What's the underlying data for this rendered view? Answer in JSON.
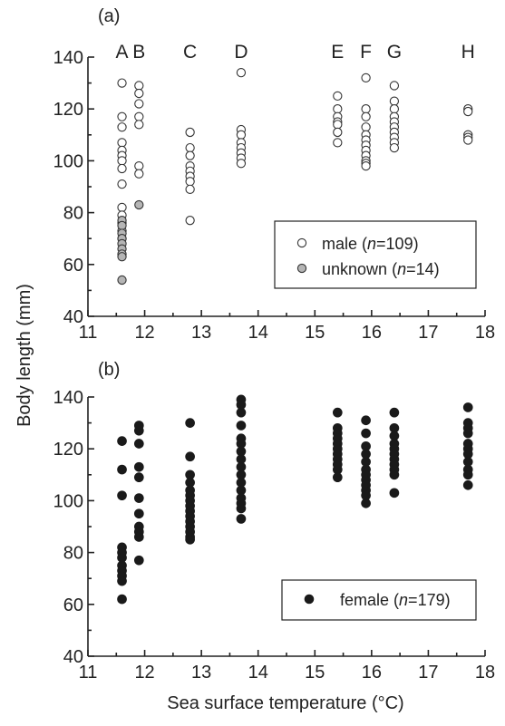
{
  "y_axis_title": "Body length (mm)",
  "x_axis_title": "Sea surface temperature (°C)",
  "colors": {
    "male": "#ffffff",
    "unknown": "#b5b5b5",
    "female": "#1a1a1a",
    "stroke": "#333333"
  },
  "chart_data": [
    {
      "type": "scatter",
      "panel_label": "(a)",
      "xlim": [
        11,
        18
      ],
      "ylim": [
        40,
        140
      ],
      "x_ticks": [
        11,
        12,
        13,
        14,
        15,
        16,
        17,
        18
      ],
      "y_ticks": [
        40,
        60,
        80,
        100,
        120,
        140
      ],
      "x_tick_labels": [
        "11",
        "12",
        "13",
        "14",
        "15",
        "16",
        "17",
        "18"
      ],
      "y_tick_labels": [
        "40",
        "60",
        "80",
        "100",
        "120",
        "140"
      ],
      "group_labels": [
        {
          "label": "A",
          "x": 11.6
        },
        {
          "label": "B",
          "x": 11.9
        },
        {
          "label": "C",
          "x": 12.8
        },
        {
          "label": "D",
          "x": 13.7
        },
        {
          "label": "E",
          "x": 15.4
        },
        {
          "label": "F",
          "x": 15.9
        },
        {
          "label": "G",
          "x": 16.4
        },
        {
          "label": "H",
          "x": 17.7
        }
      ],
      "legend_position": "lower-right",
      "series": [
        {
          "name": "male",
          "n": "109",
          "marker": "open-circle",
          "points": [
            [
              11.6,
              130
            ],
            [
              11.6,
              117
            ],
            [
              11.6,
              113
            ],
            [
              11.6,
              107
            ],
            [
              11.6,
              104
            ],
            [
              11.6,
              102
            ],
            [
              11.6,
              100
            ],
            [
              11.6,
              97
            ],
            [
              11.6,
              91
            ],
            [
              11.6,
              82
            ],
            [
              11.6,
              79
            ],
            [
              11.6,
              76
            ],
            [
              11.6,
              73
            ],
            [
              11.6,
              70
            ],
            [
              11.9,
              129
            ],
            [
              11.9,
              126
            ],
            [
              11.9,
              122
            ],
            [
              11.9,
              117
            ],
            [
              11.9,
              114
            ],
            [
              11.9,
              98
            ],
            [
              11.9,
              95
            ],
            [
              12.8,
              111
            ],
            [
              12.8,
              105
            ],
            [
              12.8,
              102
            ],
            [
              12.8,
              98
            ],
            [
              12.8,
              96
            ],
            [
              12.8,
              94
            ],
            [
              12.8,
              92
            ],
            [
              12.8,
              89
            ],
            [
              12.8,
              77
            ],
            [
              13.7,
              134
            ],
            [
              13.7,
              112
            ],
            [
              13.7,
              110
            ],
            [
              13.7,
              107
            ],
            [
              13.7,
              105
            ],
            [
              13.7,
              103
            ],
            [
              13.7,
              101
            ],
            [
              13.7,
              99
            ],
            [
              15.4,
              125
            ],
            [
              15.4,
              120
            ],
            [
              15.4,
              117
            ],
            [
              15.4,
              115
            ],
            [
              15.4,
              114
            ],
            [
              15.4,
              111
            ],
            [
              15.4,
              107
            ],
            [
              15.9,
              132
            ],
            [
              15.9,
              120
            ],
            [
              15.9,
              117
            ],
            [
              15.9,
              113
            ],
            [
              15.9,
              110
            ],
            [
              15.9,
              108
            ],
            [
              15.9,
              106
            ],
            [
              15.9,
              104
            ],
            [
              15.9,
              102
            ],
            [
              15.9,
              100
            ],
            [
              15.9,
              99
            ],
            [
              15.9,
              98
            ],
            [
              16.4,
              129
            ],
            [
              16.4,
              123
            ],
            [
              16.4,
              120
            ],
            [
              16.4,
              117
            ],
            [
              16.4,
              115
            ],
            [
              16.4,
              113
            ],
            [
              16.4,
              111
            ],
            [
              16.4,
              109
            ],
            [
              16.4,
              107
            ],
            [
              16.4,
              105
            ],
            [
              17.7,
              120
            ],
            [
              17.7,
              119
            ],
            [
              17.7,
              110
            ],
            [
              17.7,
              109
            ],
            [
              17.7,
              108
            ]
          ]
        },
        {
          "name": "unknown",
          "n": "14",
          "marker": "filled-grey-circle",
          "points": [
            [
              11.6,
              77
            ],
            [
              11.6,
              75
            ],
            [
              11.6,
              72
            ],
            [
              11.6,
              70
            ],
            [
              11.6,
              68
            ],
            [
              11.6,
              66
            ],
            [
              11.6,
              64
            ],
            [
              11.6,
              63
            ],
            [
              11.6,
              54
            ],
            [
              11.9,
              83
            ]
          ]
        }
      ]
    },
    {
      "type": "scatter",
      "panel_label": "(b)",
      "xlim": [
        11,
        18
      ],
      "ylim": [
        40,
        140
      ],
      "x_ticks": [
        11,
        12,
        13,
        14,
        15,
        16,
        17,
        18
      ],
      "y_ticks": [
        40,
        60,
        80,
        100,
        120,
        140
      ],
      "x_tick_labels": [
        "11",
        "12",
        "13",
        "14",
        "15",
        "16",
        "17",
        "18"
      ],
      "y_tick_labels": [
        "40",
        "60",
        "80",
        "100",
        "120",
        "140"
      ],
      "legend_position": "lower-right",
      "series": [
        {
          "name": "female",
          "n": "179",
          "marker": "filled-black-circle",
          "points": [
            [
              11.6,
              123
            ],
            [
              11.6,
              112
            ],
            [
              11.6,
              102
            ],
            [
              11.6,
              82
            ],
            [
              11.6,
              80
            ],
            [
              11.6,
              78
            ],
            [
              11.6,
              75
            ],
            [
              11.6,
              73
            ],
            [
              11.6,
              71
            ],
            [
              11.6,
              69
            ],
            [
              11.6,
              62
            ],
            [
              11.9,
              129
            ],
            [
              11.9,
              127
            ],
            [
              11.9,
              122
            ],
            [
              11.9,
              113
            ],
            [
              11.9,
              109
            ],
            [
              11.9,
              101
            ],
            [
              11.9,
              95
            ],
            [
              11.9,
              90
            ],
            [
              11.9,
              88
            ],
            [
              11.9,
              86
            ],
            [
              11.9,
              77
            ],
            [
              12.8,
              130
            ],
            [
              12.8,
              117
            ],
            [
              12.8,
              110
            ],
            [
              12.8,
              107
            ],
            [
              12.8,
              104
            ],
            [
              12.8,
              102
            ],
            [
              12.8,
              100
            ],
            [
              12.8,
              98
            ],
            [
              12.8,
              96
            ],
            [
              12.8,
              94
            ],
            [
              12.8,
              92
            ],
            [
              12.8,
              90
            ],
            [
              12.8,
              88
            ],
            [
              12.8,
              86
            ],
            [
              12.8,
              85
            ],
            [
              13.7,
              139
            ],
            [
              13.7,
              137
            ],
            [
              13.7,
              134
            ],
            [
              13.7,
              129
            ],
            [
              13.7,
              124
            ],
            [
              13.7,
              122
            ],
            [
              13.7,
              119
            ],
            [
              13.7,
              116
            ],
            [
              13.7,
              113
            ],
            [
              13.7,
              110
            ],
            [
              13.7,
              107
            ],
            [
              13.7,
              104
            ],
            [
              13.7,
              101
            ],
            [
              13.7,
              99
            ],
            [
              13.7,
              97
            ],
            [
              13.7,
              93
            ],
            [
              15.4,
              134
            ],
            [
              15.4,
              128
            ],
            [
              15.4,
              126
            ],
            [
              15.4,
              124
            ],
            [
              15.4,
              122
            ],
            [
              15.4,
              120
            ],
            [
              15.4,
              118
            ],
            [
              15.4,
              116
            ],
            [
              15.4,
              114
            ],
            [
              15.4,
              112
            ],
            [
              15.4,
              109
            ],
            [
              15.9,
              131
            ],
            [
              15.9,
              126
            ],
            [
              15.9,
              121
            ],
            [
              15.9,
              118
            ],
            [
              15.9,
              115
            ],
            [
              15.9,
              112
            ],
            [
              15.9,
              110
            ],
            [
              15.9,
              108
            ],
            [
              15.9,
              106
            ],
            [
              15.9,
              104
            ],
            [
              15.9,
              102
            ],
            [
              15.9,
              99
            ],
            [
              16.4,
              134
            ],
            [
              16.4,
              128
            ],
            [
              16.4,
              125
            ],
            [
              16.4,
              122
            ],
            [
              16.4,
              120
            ],
            [
              16.4,
              118
            ],
            [
              16.4,
              116
            ],
            [
              16.4,
              114
            ],
            [
              16.4,
              112
            ],
            [
              16.4,
              110
            ],
            [
              16.4,
              103
            ],
            [
              17.7,
              136
            ],
            [
              17.7,
              130
            ],
            [
              17.7,
              128
            ],
            [
              17.7,
              126
            ],
            [
              17.7,
              122
            ],
            [
              17.7,
              120
            ],
            [
              17.7,
              118
            ],
            [
              17.7,
              115
            ],
            [
              17.7,
              112
            ],
            [
              17.7,
              110
            ],
            [
              17.7,
              106
            ]
          ]
        }
      ]
    }
  ]
}
